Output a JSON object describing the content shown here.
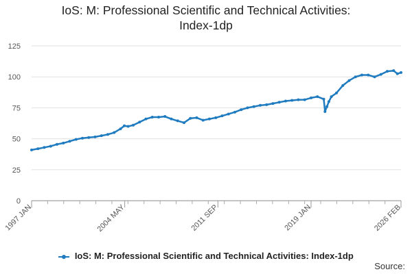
{
  "chart_data": {
    "type": "line",
    "title": "IoS: M: Professional Scientific and Technical Activities: Index-1dp",
    "title_lines": [
      "IoS: M: Professional Scientific and Technical Activities:",
      "Index-1dp"
    ],
    "xlabel": "",
    "ylabel": "",
    "ylim": [
      0,
      125
    ],
    "yticks": [
      0,
      25,
      50,
      75,
      100,
      125
    ],
    "xlim": [
      1997.0,
      2026.083
    ],
    "x_tick_labels": [
      "1997 JAN",
      "2004 MAY",
      "2011 SEP",
      "2019 JAN",
      "2026 FEB"
    ],
    "x_tick_values": [
      1997.0,
      2004.333,
      2011.667,
      2019.0,
      2026.083
    ],
    "legend_position": "bottom",
    "grid": true,
    "series": [
      {
        "name": "IoS: M: Professional Scientific and Technical Activities: Index-1dp",
        "color": "#1f7bbf",
        "x": [
          1997.0,
          1997.5,
          1998.0,
          1998.5,
          1999.0,
          1999.5,
          2000.0,
          2000.5,
          2001.0,
          2001.5,
          2002.0,
          2002.5,
          2003.0,
          2003.5,
          2004.0,
          2004.3,
          2004.6,
          2005.0,
          2005.5,
          2006.0,
          2006.5,
          2007.0,
          2007.5,
          2008.0,
          2008.5,
          2009.0,
          2009.5,
          2010.0,
          2010.5,
          2011.0,
          2011.5,
          2012.0,
          2012.5,
          2013.0,
          2013.5,
          2014.0,
          2014.5,
          2015.0,
          2015.5,
          2016.0,
          2016.5,
          2017.0,
          2017.5,
          2018.0,
          2018.5,
          2019.0,
          2019.5,
          2020.0,
          2020.1,
          2020.25,
          2020.4,
          2020.6,
          2021.0,
          2021.5,
          2022.0,
          2022.5,
          2023.0,
          2023.5,
          2024.0,
          2024.5,
          2025.0,
          2025.5,
          2025.8,
          2026.083
        ],
        "values": [
          41.0,
          42.0,
          43.0,
          44.0,
          45.5,
          46.5,
          48.0,
          49.5,
          50.5,
          51.0,
          51.5,
          52.5,
          53.5,
          55.0,
          58.0,
          60.5,
          60.0,
          61.0,
          63.5,
          66.0,
          67.5,
          67.5,
          68.0,
          66.0,
          64.5,
          63.0,
          66.5,
          67.0,
          65.0,
          66.0,
          67.0,
          68.5,
          70.0,
          71.5,
          73.5,
          75.0,
          76.0,
          77.0,
          77.5,
          78.5,
          79.5,
          80.5,
          81.0,
          81.5,
          81.5,
          83.0,
          84.0,
          82.0,
          72.0,
          76.0,
          80.0,
          84.0,
          87.0,
          93.0,
          97.0,
          100.0,
          101.5,
          101.5,
          100.0,
          102.0,
          104.5,
          105.0,
          102.5,
          103.5
        ]
      }
    ]
  },
  "legend": {
    "label": "IoS: M: Professional Scientific and Technical Activities: Index-1dp"
  },
  "footer": {
    "source_label": "Source:"
  }
}
